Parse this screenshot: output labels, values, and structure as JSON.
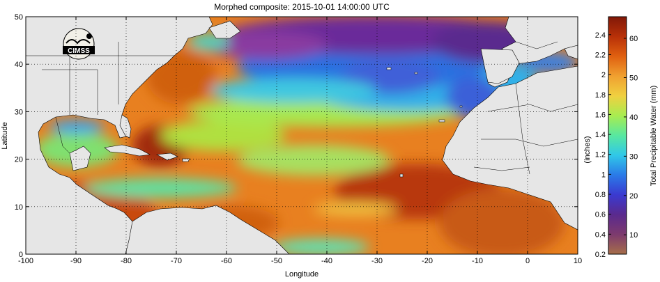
{
  "title": "Morphed composite: 2015-10-01 14:00:00 UTC",
  "xlabel": "Longitude",
  "ylabel": "Latitude",
  "x_ticks": [
    "-100",
    "-90",
    "-80",
    "-70",
    "-60",
    "-50",
    "-40",
    "-30",
    "-20",
    "-10",
    "0",
    "10"
  ],
  "y_ticks": [
    "0",
    "10",
    "20",
    "30",
    "40",
    "50"
  ],
  "colorbar": {
    "label_left": "(inches)",
    "label_right": "Total Precipitable Water (mm)",
    "inch_ticks": [
      "0.2",
      "0.4",
      "0.6",
      "0.8",
      "1",
      "1.2",
      "1.4",
      "1.6",
      "1.8",
      "2",
      "2.2",
      "2.4"
    ],
    "mm_ticks": [
      "10",
      "20",
      "30",
      "40",
      "50",
      "60"
    ],
    "colors": [
      "#a66e4a",
      "#7d3a6e",
      "#5a2a8e",
      "#3a3ad0",
      "#2a7ae8",
      "#30c8e8",
      "#58e8a0",
      "#a8ec50",
      "#f0d040",
      "#f0a030",
      "#e06010",
      "#b83008",
      "#801808"
    ]
  },
  "logo_text": "CIMSS",
  "colors": {
    "land": "#e6e6e6",
    "border": "#000000",
    "grid": "#000000"
  }
}
